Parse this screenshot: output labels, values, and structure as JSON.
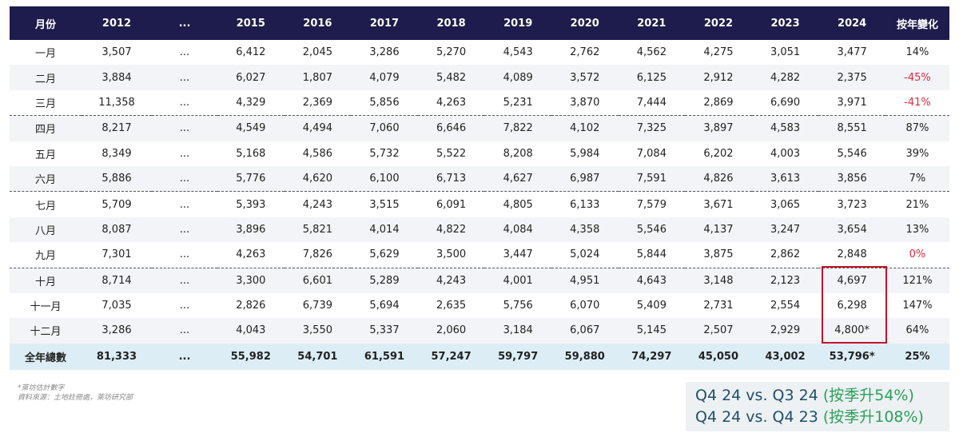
{
  "table": {
    "header": [
      "月份",
      "2012",
      "...",
      "2015",
      "2016",
      "2017",
      "2018",
      "2019",
      "2020",
      "2021",
      "2022",
      "2023",
      "2024",
      "按年變化"
    ],
    "rows": [
      [
        "一月",
        "3,507",
        "...",
        "6,412",
        "2,045",
        "3,286",
        "5,270",
        "4,543",
        "2,762",
        "4,562",
        "4,275",
        "3,051",
        "3,477",
        "14%"
      ],
      [
        "二月",
        "3,884",
        "...",
        "6,027",
        "1,807",
        "4,079",
        "5,482",
        "4,089",
        "3,572",
        "6,125",
        "2,912",
        "4,282",
        "2,375",
        "-45%"
      ],
      [
        "三月",
        "11,358",
        "...",
        "4,329",
        "2,369",
        "5,856",
        "4,263",
        "5,231",
        "3,870",
        "7,444",
        "2,869",
        "6,690",
        "3,971",
        "-41%"
      ],
      [
        "四月",
        "8,217",
        "...",
        "4,549",
        "4,494",
        "7,060",
        "6,646",
        "7,822",
        "4,102",
        "7,325",
        "3,897",
        "4,583",
        "8,551",
        "87%"
      ],
      [
        "五月",
        "8,349",
        "...",
        "5,168",
        "4,586",
        "5,732",
        "5,522",
        "8,208",
        "5,984",
        "7,084",
        "6,202",
        "4,003",
        "5,546",
        "39%"
      ],
      [
        "六月",
        "5,886",
        "...",
        "5,776",
        "4,620",
        "6,100",
        "6,713",
        "4,627",
        "6,987",
        "7,591",
        "4,826",
        "3,613",
        "3,856",
        "7%"
      ],
      [
        "七月",
        "5,709",
        "...",
        "5,393",
        "4,243",
        "3,515",
        "6,091",
        "4,805",
        "6,133",
        "7,579",
        "3,671",
        "3,065",
        "3,723",
        "21%"
      ],
      [
        "八月",
        "8,087",
        "...",
        "3,896",
        "5,821",
        "4,014",
        "4,822",
        "4,084",
        "4,358",
        "5,546",
        "4,137",
        "3,247",
        "3,654",
        "13%"
      ],
      [
        "九月",
        "7,301",
        "...",
        "4,263",
        "7,826",
        "5,629",
        "3,500",
        "3,447",
        "5,024",
        "5,844",
        "3,875",
        "2,862",
        "2,848",
        "0%"
      ],
      [
        "十月",
        "8,714",
        "...",
        "3,300",
        "6,601",
        "5,289",
        "4,243",
        "4,001",
        "4,951",
        "4,643",
        "3,148",
        "2,123",
        "4,697",
        "121%"
      ],
      [
        "十一月",
        "7,035",
        "...",
        "2,826",
        "6,739",
        "5,694",
        "2,635",
        "5,756",
        "6,070",
        "5,409",
        "2,731",
        "2,554",
        "6,298",
        "147%"
      ],
      [
        "十二月",
        "3,286",
        "...",
        "4,043",
        "3,550",
        "5,337",
        "2,060",
        "3,184",
        "6,067",
        "5,145",
        "2,507",
        "2,929",
        "4,800*",
        "64%"
      ]
    ],
    "total": [
      "全年總數",
      "81,333",
      "...",
      "55,982",
      "54,701",
      "61,591",
      "57,247",
      "59,797",
      "59,880",
      "74,297",
      "45,050",
      "43,002",
      "53,796*",
      "25%"
    ]
  },
  "notes": [
    "*萊坊估計數字",
    "資料來源：土地註冊處，萊坊研究部"
  ],
  "summary": [
    {
      "label": "Q4 24 vs. Q3 24",
      "change": "(按季升54%)"
    },
    {
      "label": "Q4 24 vs. Q4 23",
      "change": "(按季升108%)"
    }
  ]
}
